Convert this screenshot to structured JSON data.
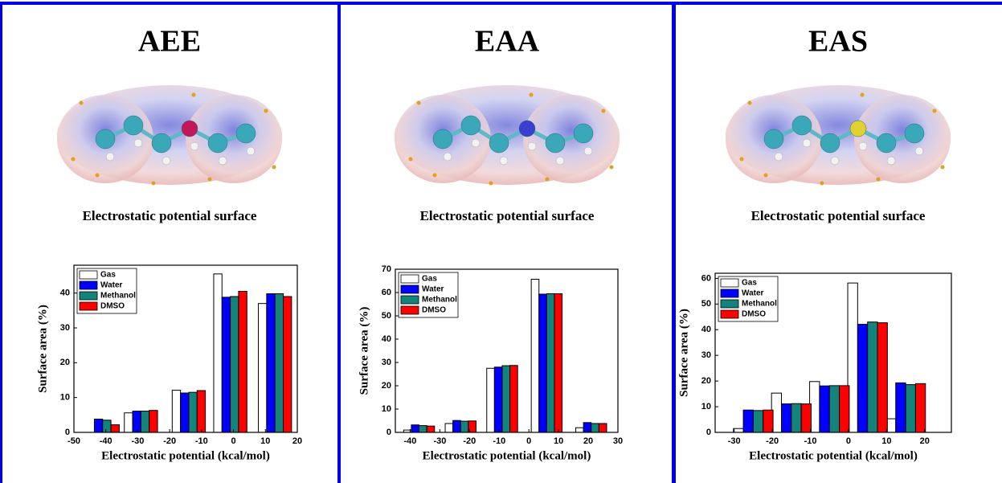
{
  "chart_data": [
    {
      "type": "bar",
      "title": "AEE",
      "annotation": "Electrostatic potential surface",
      "x_label": "Electrostatic potential (kcal/mol)",
      "y_label": "Surface area (%)",
      "x": [
        -41,
        -29,
        -14,
        -1,
        13
      ],
      "series": [
        {
          "name": "Gas",
          "color": "#ffffff",
          "values": [
            0,
            5.6,
            12.1,
            45.5,
            37
          ]
        },
        {
          "name": "Water",
          "color": "#0000ff",
          "values": [
            3.8,
            6.1,
            11.3,
            38.8,
            39.8
          ]
        },
        {
          "name": "Methanol",
          "color": "#13837c",
          "values": [
            3.5,
            6.1,
            11.5,
            39,
            39.8
          ]
        },
        {
          "name": "DMSO",
          "color": "#ff0000",
          "values": [
            2.2,
            6.3,
            12,
            40.5,
            39
          ]
        }
      ],
      "xlim": [
        -50,
        20
      ],
      "xticks": [
        -50,
        -40,
        -30,
        -20,
        -10,
        0,
        10,
        20
      ],
      "ylim": [
        0,
        48
      ],
      "yticks": [
        0,
        10,
        20,
        30,
        40
      ],
      "legend": "upper left"
    },
    {
      "type": "bar",
      "title": "EAA",
      "annotation": "Electrostatic potential surface",
      "x_label": "Electrostatic potential (kcal/mol)",
      "y_label": "Surface area (%)",
      "x": [
        -37,
        -23,
        -9,
        6,
        21
      ],
      "series": [
        {
          "name": "Gas",
          "color": "#ffffff",
          "values": [
            1,
            3.8,
            27.5,
            65.7,
            2
          ]
        },
        {
          "name": "Water",
          "color": "#0000ff",
          "values": [
            3.2,
            5.1,
            28,
            59.3,
            4.2
          ]
        },
        {
          "name": "Methanol",
          "color": "#13837c",
          "values": [
            2.9,
            4.8,
            28.6,
            59.5,
            3.8
          ]
        },
        {
          "name": "DMSO",
          "color": "#ff0000",
          "values": [
            2.7,
            4.9,
            28.7,
            59.5,
            3.8
          ]
        }
      ],
      "xlim": [
        -45,
        30
      ],
      "xticks": [
        -40,
        -30,
        -20,
        -10,
        0,
        10,
        20,
        30
      ],
      "ylim": [
        0,
        70
      ],
      "yticks": [
        0,
        10,
        20,
        30,
        40,
        50,
        60,
        70
      ],
      "legend": "upper left"
    },
    {
      "type": "bar",
      "title": "EAS",
      "annotation": "Electrostatic potential surface",
      "x_label": "Electrostatic potential (kcal/mol)",
      "y_label": "Surface area (%)",
      "x": [
        -25,
        -15,
        -5,
        5,
        15
      ],
      "series": [
        {
          "name": "Gas",
          "color": "#ffffff",
          "values": [
            1.5,
            15.3,
            19.8,
            58.2,
            5.3
          ]
        },
        {
          "name": "Water",
          "color": "#0000ff",
          "values": [
            8.7,
            11.1,
            18.1,
            42.1,
            19.3
          ]
        },
        {
          "name": "Methanol",
          "color": "#13837c",
          "values": [
            8.5,
            11.2,
            18.2,
            43,
            18.6
          ]
        },
        {
          "name": "DMSO",
          "color": "#ff0000",
          "values": [
            8.7,
            11.1,
            18.2,
            42.7,
            19
          ]
        }
      ],
      "xlim": [
        -35,
        27
      ],
      "xticks": [
        -30,
        -20,
        -10,
        0,
        10,
        20
      ],
      "ylim": [
        0,
        62
      ],
      "yticks": [
        0,
        10,
        20,
        30,
        40,
        50,
        60
      ],
      "legend": "upper left"
    }
  ]
}
